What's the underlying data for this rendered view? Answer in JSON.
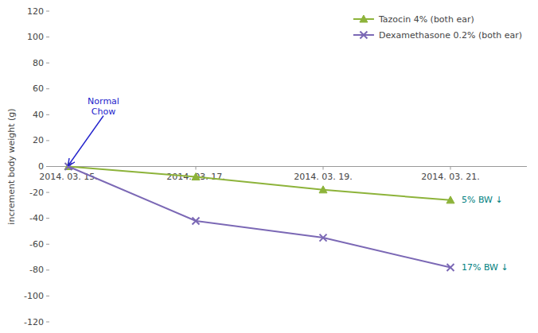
{
  "chart_data": {
    "type": "line",
    "y_label": "increment body weight (g)",
    "x": [
      0,
      2,
      4,
      6
    ],
    "xlim": [
      -0.3,
      7.2
    ],
    "xticks": [
      {
        "value": 0,
        "label": "2014. 03. 15."
      },
      {
        "value": 2,
        "label": "2014. 03. 17."
      },
      {
        "value": 4,
        "label": "2014. 03. 19."
      },
      {
        "value": 6,
        "label": "2014. 03. 21."
      }
    ],
    "ylim": [
      -120,
      120
    ],
    "yticks": [
      -120,
      -100,
      -80,
      -60,
      -40,
      -20,
      0,
      20,
      40,
      60,
      80,
      100,
      120
    ],
    "grid": false,
    "legend": "upper right",
    "series": [
      {
        "name": "Tazocin 4% (both ear)",
        "color": "#8db33a",
        "marker": "triangle",
        "values": [
          0,
          -8,
          -18,
          -26
        ]
      },
      {
        "name": "Dexamethasone 0.2% (both ear)",
        "color": "#7b68b5",
        "marker": "x",
        "values": [
          0,
          -42,
          -55,
          -78
        ]
      }
    ],
    "annotations": [
      {
        "text": "Normal\nChow",
        "x": 0,
        "y": 1,
        "text_x": 0.55,
        "text_y": 38,
        "color": "#2222cc",
        "arrow": true
      },
      {
        "text": "5% BW ↓",
        "x": 6,
        "y": -26,
        "color": "#008080"
      },
      {
        "text": "17% BW ↓",
        "x": 6,
        "y": -78,
        "color": "#008080"
      }
    ]
  }
}
